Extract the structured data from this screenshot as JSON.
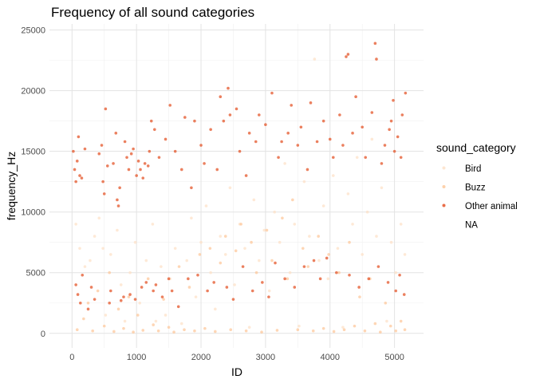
{
  "chart_data": {
    "type": "scatter",
    "title": "Frequency of all sound categories",
    "xlabel": "ID",
    "ylabel": "frequency_Hz",
    "xlim": [
      -350,
      5450
    ],
    "ylim": [
      -1200,
      25500
    ],
    "x_ticks": [
      0,
      1000,
      2000,
      3000,
      4000,
      5000
    ],
    "y_ticks": [
      0,
      5000,
      10000,
      15000,
      20000,
      25000
    ],
    "grid": true,
    "legend": {
      "title": "sound_category",
      "position": "right"
    },
    "series": [
      {
        "name": "Bird",
        "color": "#fde0c5",
        "points": [
          [
            60,
            9000
          ],
          [
            120,
            7000
          ],
          [
            200,
            5500
          ],
          [
            280,
            6000
          ],
          [
            350,
            8000
          ],
          [
            420,
            9500
          ],
          [
            480,
            7000
          ],
          [
            520,
            1500
          ],
          [
            600,
            6500
          ],
          [
            700,
            8500
          ],
          [
            760,
            4000
          ],
          [
            820,
            1000
          ],
          [
            900,
            5000
          ],
          [
            980,
            7500
          ],
          [
            1050,
            2500
          ],
          [
            1150,
            6000
          ],
          [
            1250,
            9000
          ],
          [
            1300,
            1000
          ],
          [
            1380,
            5500
          ],
          [
            1450,
            1500
          ],
          [
            1520,
            4500
          ],
          [
            1600,
            7000
          ],
          [
            1700,
            800
          ],
          [
            1780,
            6000
          ],
          [
            1850,
            9500
          ],
          [
            1920,
            3000
          ],
          [
            2000,
            7500
          ],
          [
            2080,
            10500
          ],
          [
            2150,
            5000
          ],
          [
            2220,
            2000
          ],
          [
            2300,
            8000
          ],
          [
            2380,
            6500
          ],
          [
            2450,
            12000
          ],
          [
            2520,
            4000
          ],
          [
            2600,
            9000
          ],
          [
            2680,
            7000
          ],
          [
            2750,
            500
          ],
          [
            2820,
            11000
          ],
          [
            2900,
            6000
          ],
          [
            2980,
            8500
          ],
          [
            3060,
            3500
          ],
          [
            3140,
            10000
          ],
          [
            3220,
            7500
          ],
          [
            3300,
            14000
          ],
          [
            3380,
            5000
          ],
          [
            3450,
            9000
          ],
          [
            3520,
            600
          ],
          [
            3600,
            12500
          ],
          [
            3680,
            8000
          ],
          [
            3760,
            22600
          ],
          [
            3830,
            6000
          ],
          [
            3900,
            10500
          ],
          [
            3970,
            4500
          ],
          [
            4050,
            13000
          ],
          [
            4120,
            7000
          ],
          [
            4200,
            500
          ],
          [
            4280,
            11500
          ],
          [
            4350,
            9000
          ],
          [
            4420,
            14500
          ],
          [
            4500,
            6500
          ],
          [
            4580,
            10000
          ],
          [
            4650,
            16000
          ],
          [
            4720,
            8000
          ],
          [
            4800,
            12000
          ],
          [
            4880,
            1000
          ],
          [
            4950,
            7500
          ],
          [
            5020,
            5000
          ],
          [
            5100,
            9000
          ],
          [
            5160,
            6500
          ]
        ]
      },
      {
        "name": "Buzz",
        "color": "#fdc596",
        "points": [
          [
            80,
            300
          ],
          [
            180,
            1200
          ],
          [
            250,
            2500
          ],
          [
            320,
            200
          ],
          [
            400,
            3500
          ],
          [
            500,
            600
          ],
          [
            580,
            5000
          ],
          [
            650,
            150
          ],
          [
            720,
            2000
          ],
          [
            800,
            400
          ],
          [
            880,
            3000
          ],
          [
            950,
            100
          ],
          [
            1020,
            1500
          ],
          [
            1100,
            250
          ],
          [
            1180,
            4500
          ],
          [
            1260,
            700
          ],
          [
            1340,
            200
          ],
          [
            1420,
            2800
          ],
          [
            1500,
            500
          ],
          [
            1580,
            100
          ],
          [
            1660,
            5500
          ],
          [
            1740,
            300
          ],
          [
            1820,
            3800
          ],
          [
            1900,
            200
          ],
          [
            1980,
            6500
          ],
          [
            2060,
            400
          ],
          [
            2140,
            7000
          ],
          [
            2220,
            150
          ],
          [
            2300,
            5800
          ],
          [
            2380,
            8000
          ],
          [
            2460,
            300
          ],
          [
            2540,
            6800
          ],
          [
            2620,
            9000
          ],
          [
            2700,
            200
          ],
          [
            2780,
            7500
          ],
          [
            2860,
            5000
          ],
          [
            2940,
            100
          ],
          [
            3020,
            8500
          ],
          [
            3100,
            6000
          ],
          [
            3180,
            250
          ],
          [
            3260,
            9500
          ],
          [
            3340,
            4500
          ],
          [
            3420,
            11000
          ],
          [
            3500,
            300
          ],
          [
            3580,
            7000
          ],
          [
            3660,
            5500
          ],
          [
            3740,
            200
          ],
          [
            3820,
            8000
          ],
          [
            3900,
            400
          ],
          [
            3980,
            6500
          ],
          [
            4060,
            150
          ],
          [
            4140,
            5000
          ],
          [
            4220,
            300
          ],
          [
            4300,
            7500
          ],
          [
            4380,
            600
          ],
          [
            4460,
            3000
          ],
          [
            4540,
            200
          ],
          [
            4620,
            4500
          ],
          [
            4700,
            800
          ],
          [
            4780,
            100
          ],
          [
            4860,
            2500
          ],
          [
            4940,
            600
          ],
          [
            5020,
            200
          ],
          [
            5100,
            1000
          ],
          [
            5160,
            300
          ]
        ]
      },
      {
        "name": "Other animal",
        "color": "#e34a1b",
        "points": [
          [
            20,
            15000
          ],
          [
            40,
            13500
          ],
          [
            60,
            12500
          ],
          [
            80,
            14200
          ],
          [
            100,
            16200
          ],
          [
            120,
            13000
          ],
          [
            150,
            12800
          ],
          [
            60,
            4000
          ],
          [
            90,
            3200
          ],
          [
            130,
            2500
          ],
          [
            160,
            4800
          ],
          [
            200,
            15200
          ],
          [
            250,
            2000
          ],
          [
            300,
            3800
          ],
          [
            350,
            2800
          ],
          [
            420,
            14800
          ],
          [
            460,
            15500
          ],
          [
            480,
            12500
          ],
          [
            500,
            11500
          ],
          [
            520,
            18500
          ],
          [
            550,
            13800
          ],
          [
            580,
            2500
          ],
          [
            600,
            3500
          ],
          [
            640,
            14000
          ],
          [
            680,
            16500
          ],
          [
            700,
            11000
          ],
          [
            720,
            10500
          ],
          [
            740,
            12000
          ],
          [
            760,
            2700
          ],
          [
            800,
            3000
          ],
          [
            820,
            15800
          ],
          [
            850,
            14500
          ],
          [
            880,
            13500
          ],
          [
            900,
            3200
          ],
          [
            920,
            14800
          ],
          [
            950,
            15200
          ],
          [
            980,
            2800
          ],
          [
            1000,
            13000
          ],
          [
            1030,
            14200
          ],
          [
            1060,
            13500
          ],
          [
            1080,
            3800
          ],
          [
            1100,
            12800
          ],
          [
            1130,
            14000
          ],
          [
            1150,
            4200
          ],
          [
            1180,
            13800
          ],
          [
            1200,
            15000
          ],
          [
            1230,
            17500
          ],
          [
            1260,
            3500
          ],
          [
            1280,
            16800
          ],
          [
            1300,
            4000
          ],
          [
            1350,
            14500
          ],
          [
            1400,
            3000
          ],
          [
            1450,
            16000
          ],
          [
            1500,
            4500
          ],
          [
            1520,
            18800
          ],
          [
            1550,
            3500
          ],
          [
            1600,
            15000
          ],
          [
            1650,
            2200
          ],
          [
            1700,
            13500
          ],
          [
            1750,
            17800
          ],
          [
            1800,
            4500
          ],
          [
            1850,
            12000
          ],
          [
            1900,
            17500
          ],
          [
            1950,
            4800
          ],
          [
            2000,
            15500
          ],
          [
            2050,
            14000
          ],
          [
            2100,
            3500
          ],
          [
            2150,
            16800
          ],
          [
            2200,
            4200
          ],
          [
            2250,
            13500
          ],
          [
            2300,
            19500
          ],
          [
            2350,
            17500
          ],
          [
            2400,
            3800
          ],
          [
            2420,
            20200
          ],
          [
            2450,
            18000
          ],
          [
            2500,
            2800
          ],
          [
            2550,
            18500
          ],
          [
            2600,
            15000
          ],
          [
            2650,
            5500
          ],
          [
            2700,
            13000
          ],
          [
            2750,
            16500
          ],
          [
            2800,
            3500
          ],
          [
            2850,
            15800
          ],
          [
            2900,
            18000
          ],
          [
            2950,
            4200
          ],
          [
            3000,
            17200
          ],
          [
            3050,
            3000
          ],
          [
            3100,
            19800
          ],
          [
            3150,
            5800
          ],
          [
            3200,
            14500
          ],
          [
            3250,
            15800
          ],
          [
            3300,
            4500
          ],
          [
            3350,
            16500
          ],
          [
            3400,
            18800
          ],
          [
            3450,
            3800
          ],
          [
            3500,
            15500
          ],
          [
            3550,
            17000
          ],
          [
            3600,
            5500
          ],
          [
            3650,
            13500
          ],
          [
            3700,
            19000
          ],
          [
            3750,
            6000
          ],
          [
            3800,
            15800
          ],
          [
            3850,
            4500
          ],
          [
            3900,
            17500
          ],
          [
            3950,
            6200
          ],
          [
            4000,
            16000
          ],
          [
            4050,
            14500
          ],
          [
            4100,
            5000
          ],
          [
            4150,
            18000
          ],
          [
            4200,
            15500
          ],
          [
            4250,
            22800
          ],
          [
            4280,
            23000
          ],
          [
            4300,
            4800
          ],
          [
            4350,
            16500
          ],
          [
            4400,
            19500
          ],
          [
            4450,
            3800
          ],
          [
            4500,
            17000
          ],
          [
            4550,
            14500
          ],
          [
            4600,
            4500
          ],
          [
            4650,
            18200
          ],
          [
            4700,
            23900
          ],
          [
            4720,
            22600
          ],
          [
            4750,
            5500
          ],
          [
            4800,
            14000
          ],
          [
            4850,
            15500
          ],
          [
            4900,
            4200
          ],
          [
            4920,
            16800
          ],
          [
            4950,
            17500
          ],
          [
            4980,
            19200
          ],
          [
            5000,
            15000
          ],
          [
            5020,
            3500
          ],
          [
            5050,
            16200
          ],
          [
            5080,
            4800
          ],
          [
            5100,
            14500
          ],
          [
            5120,
            18000
          ],
          [
            5150,
            3200
          ],
          [
            5170,
            19800
          ]
        ]
      },
      {
        "name": "NA",
        "color": "#ffffff",
        "points": []
      }
    ]
  }
}
